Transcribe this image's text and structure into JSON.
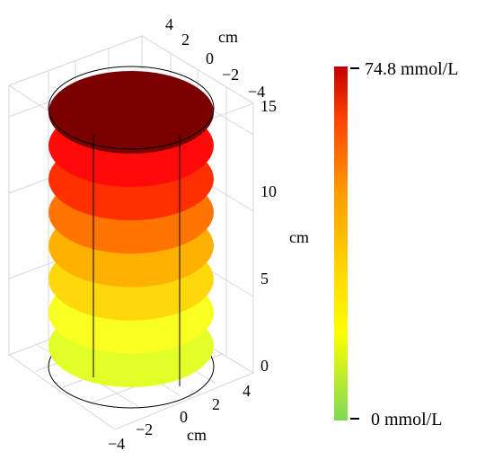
{
  "plot": {
    "axis_unit_x": "cm",
    "axis_unit_y": "cm",
    "axis_unit_z": "cm",
    "top_y_ticks": [
      "4",
      "2",
      "0",
      "−2",
      "−4"
    ],
    "bottom_x_ticks": [
      "4",
      "2",
      "0",
      "−2",
      "−4"
    ],
    "z_ticks": [
      "15",
      "10",
      "5",
      "0"
    ]
  },
  "colorbar": {
    "max_label": "74.8 mmol/L",
    "min_label": "0 mmol/L",
    "colors": [
      "#7ed957",
      "#ffff00",
      "#ffd000",
      "#ff9900",
      "#ff4400",
      "#c00000"
    ]
  },
  "layers": [
    {
      "color": "#e3ff2a"
    },
    {
      "color": "#f9ff1f"
    },
    {
      "color": "#ffd80c"
    },
    {
      "color": "#ffb000"
    },
    {
      "color": "#ff7500"
    },
    {
      "color": "#ff3000"
    },
    {
      "color": "#ff0a0a"
    },
    {
      "color": "#7a0000"
    }
  ]
}
